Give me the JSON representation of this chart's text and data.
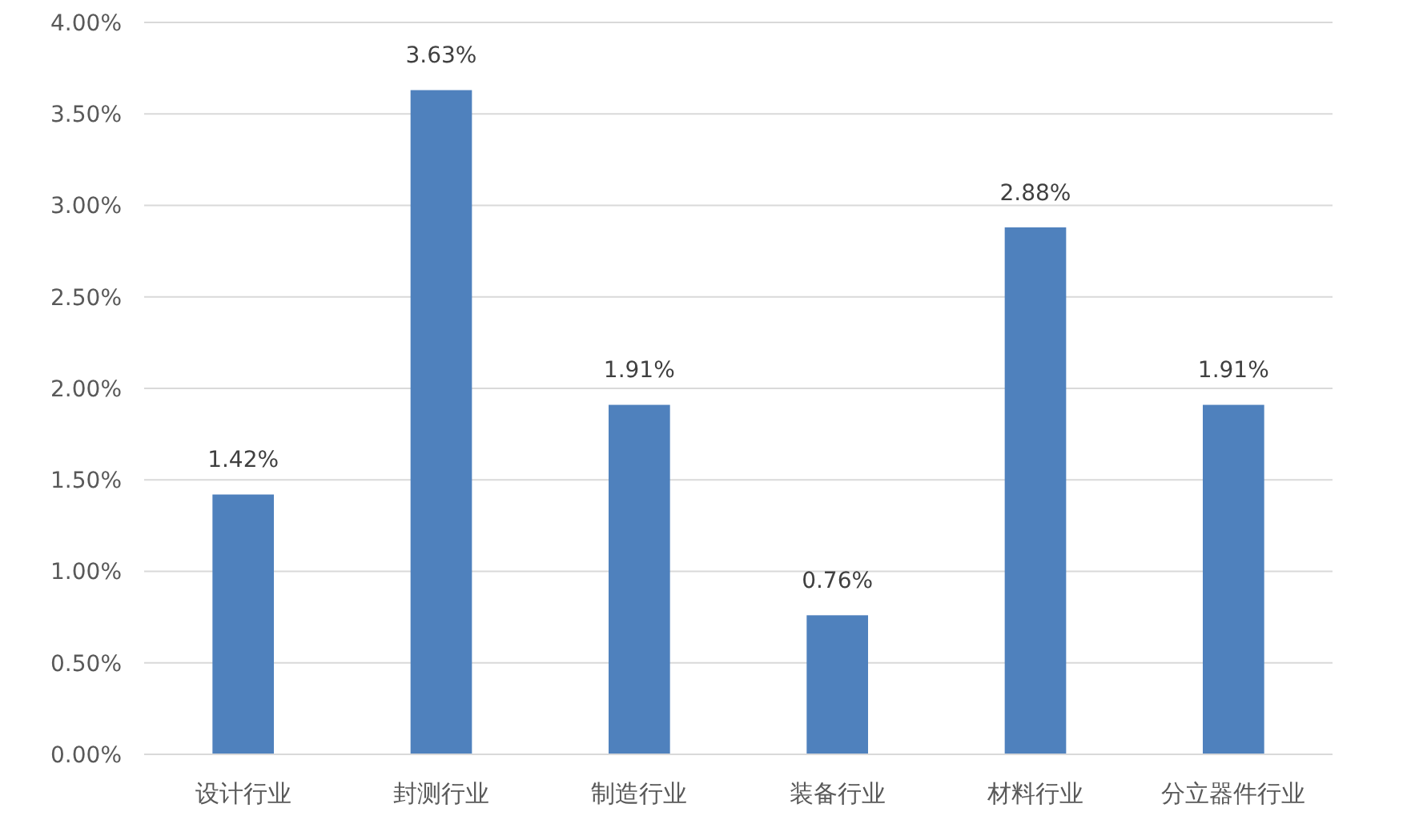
{
  "chart_data": {
    "type": "bar",
    "categories": [
      "设计行业",
      "封测行业",
      "制造行业",
      "装备行业",
      "材料行业",
      "分立器件行业"
    ],
    "values": [
      1.42,
      3.63,
      1.91,
      0.76,
      2.88,
      1.91
    ],
    "value_labels": [
      "1.42%",
      "3.63%",
      "1.91%",
      "0.76%",
      "2.88%",
      "1.91%"
    ],
    "color": "#4f81bd",
    "ylim": [
      0,
      4
    ],
    "yticks": [
      {
        "value": 0,
        "label": "0.00%"
      },
      {
        "value": 0.5,
        "label": "0.50%"
      },
      {
        "value": 1,
        "label": "1.00%"
      },
      {
        "value": 1.5,
        "label": "1.50%"
      },
      {
        "value": 2,
        "label": "2.00%"
      },
      {
        "value": 2.5,
        "label": "2.50%"
      },
      {
        "value": 3,
        "label": "3.00%"
      },
      {
        "value": 3.5,
        "label": "3.50%"
      },
      {
        "value": 4,
        "label": "4.00%"
      }
    ],
    "grid": "y"
  }
}
